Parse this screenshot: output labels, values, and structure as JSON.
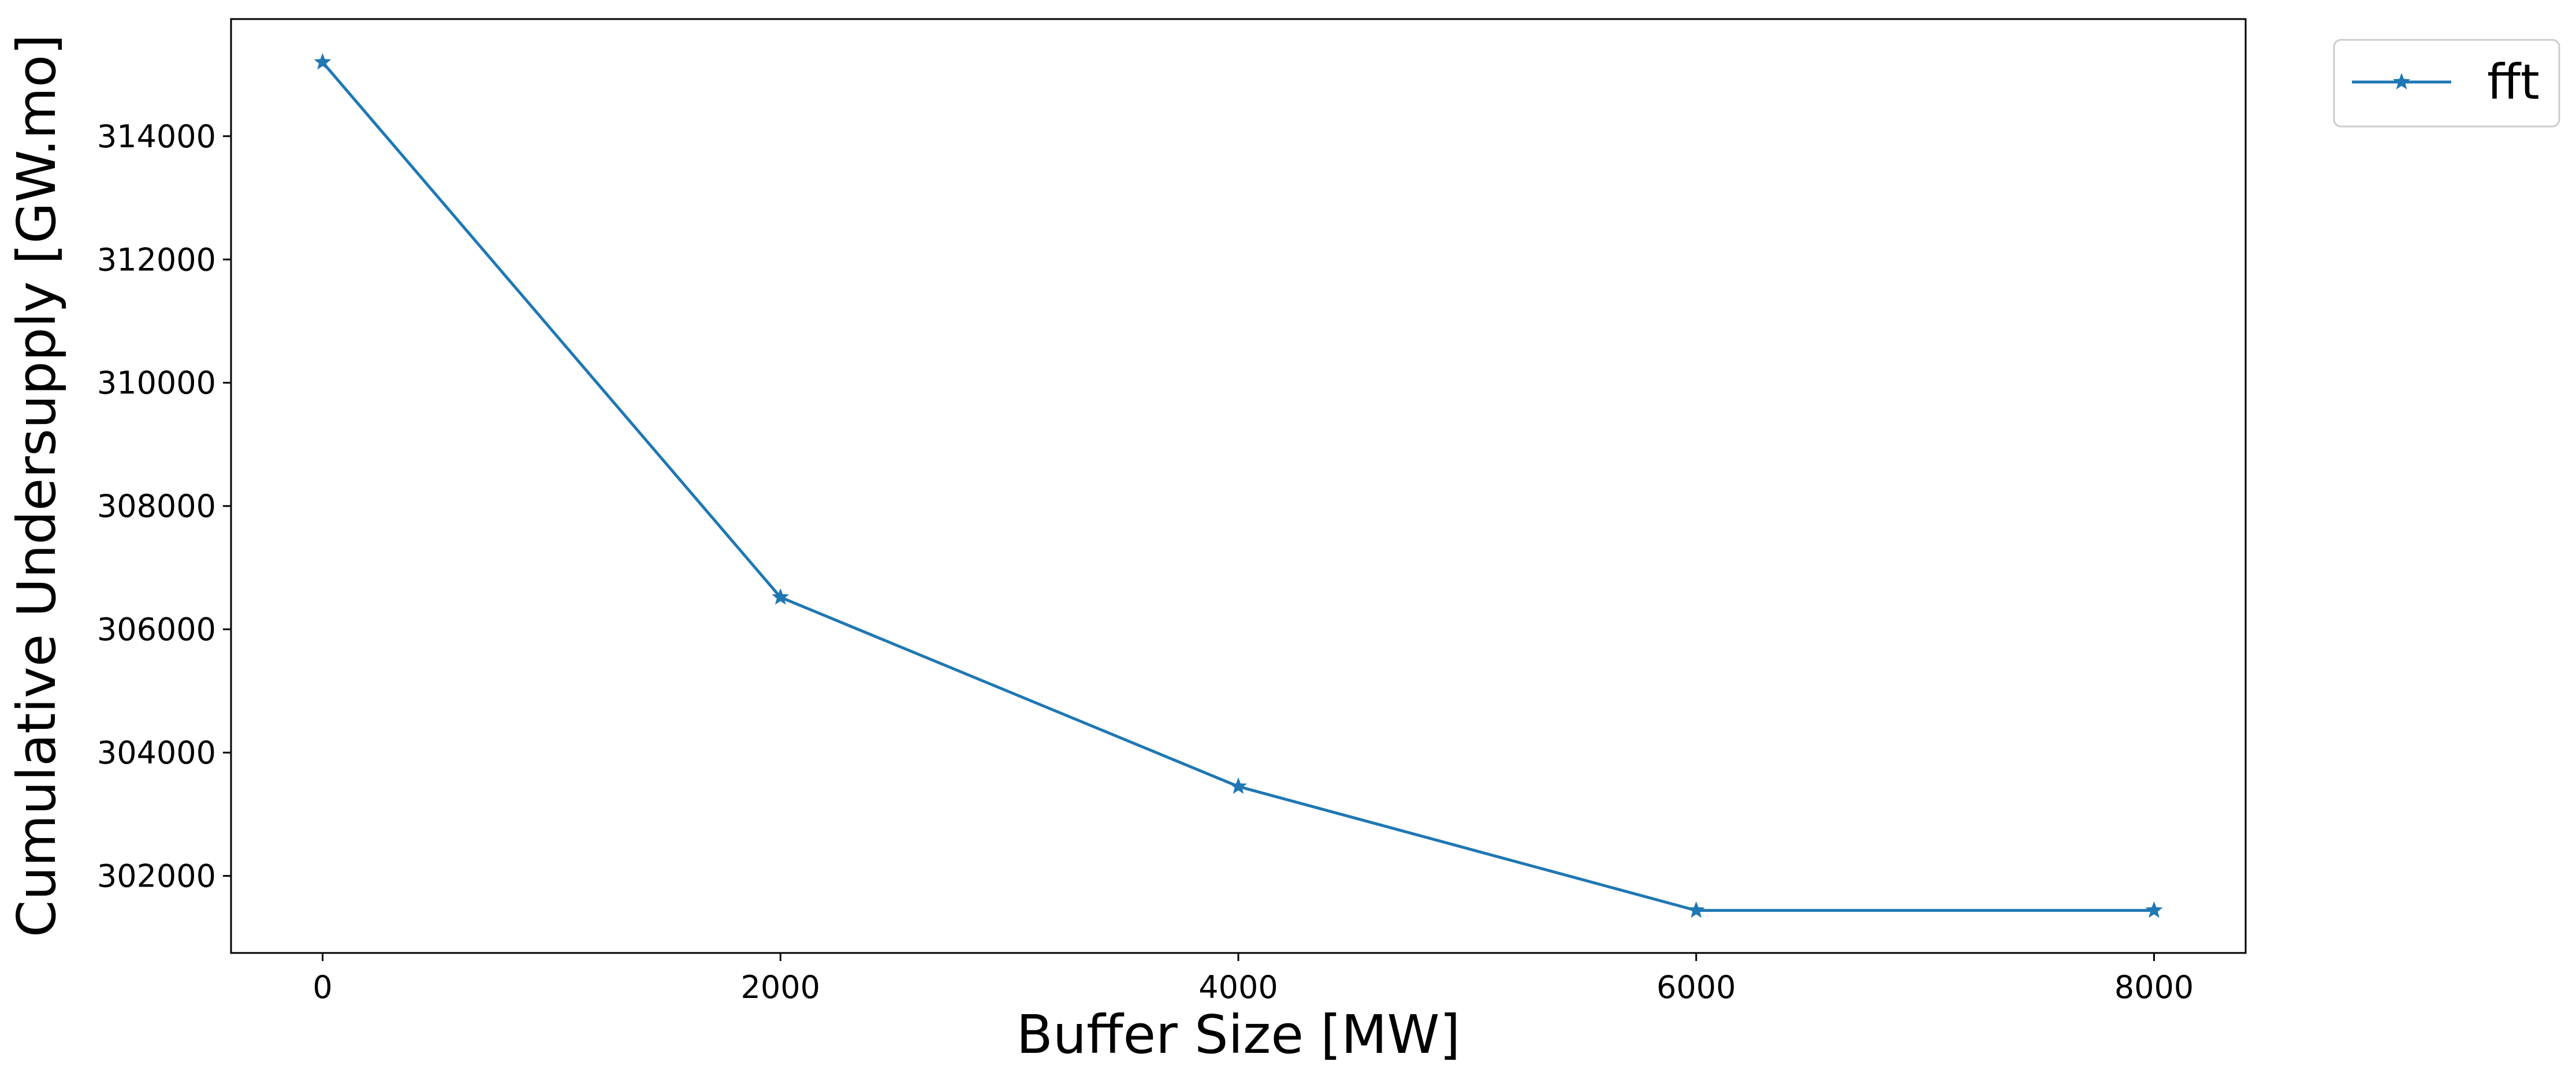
{
  "chart_data": {
    "type": "line",
    "title": "",
    "xlabel": "Buffer Size [MW]",
    "ylabel": "Cumulative Undersupply [GW.mo]",
    "x": [
      0,
      2000,
      4000,
      6000,
      8000
    ],
    "series": [
      {
        "name": "fft",
        "values": [
          315200,
          306520,
          303450,
          301440,
          301440
        ],
        "color": "#1f77b4",
        "marker": "star"
      }
    ],
    "xlim": [
      -400,
      8400
    ],
    "ylim": [
      300750,
      315900
    ],
    "xticks": [
      0,
      2000,
      4000,
      6000,
      8000
    ],
    "yticks": [
      302000,
      304000,
      306000,
      308000,
      310000,
      312000,
      314000
    ],
    "grid": false,
    "legend_position": "outside-top-right"
  }
}
